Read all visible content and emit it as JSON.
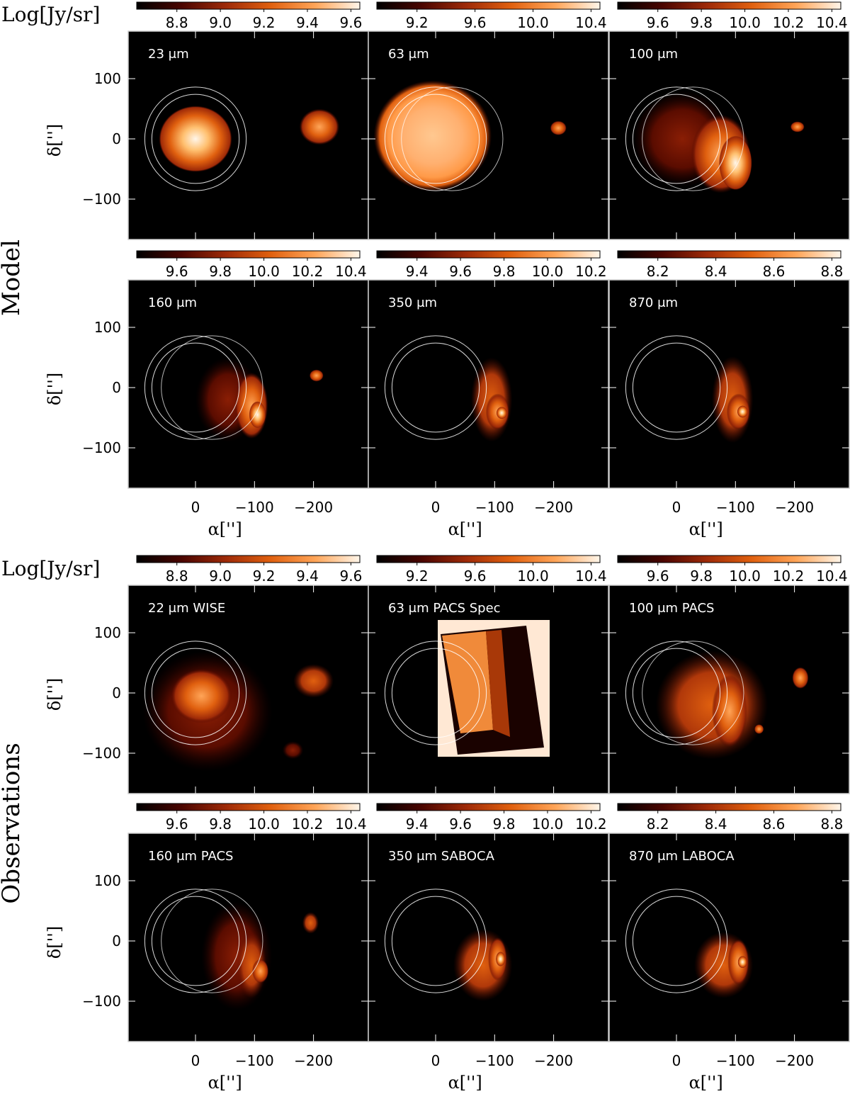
{
  "chart_data": {
    "type": "heatmap",
    "unit_label": "Log[Jy/sr]",
    "group_labels": [
      "Model",
      "Observations"
    ],
    "x_axis_label": "α['']",
    "y_axis_label": "δ['']",
    "x_ticks": [
      "0",
      "−100",
      "−200"
    ],
    "y_ticks": [
      "100",
      "0",
      "−100"
    ],
    "colormap": [
      "#000000",
      "#4a0500",
      "#9e2a08",
      "#e0600f",
      "#ffa558",
      "#fff6ea"
    ],
    "colorbar_ticks": [
      [
        "8.8",
        "9.0",
        "9.2",
        "9.4",
        "9.6"
      ],
      [
        "9.2",
        "9.6",
        "10.0",
        "10.4"
      ],
      [
        "9.6",
        "9.8",
        "10.0",
        "10.2",
        "10.4"
      ],
      [
        "9.6",
        "9.8",
        "10.0",
        "10.2",
        "10.4"
      ],
      [
        "9.4",
        "9.6",
        "9.8",
        "10.0",
        "10.2"
      ],
      [
        "8.2",
        "8.4",
        "8.6",
        "8.8"
      ],
      [
        "8.8",
        "9.0",
        "9.2",
        "9.4",
        "9.6"
      ],
      [
        "9.2",
        "9.6",
        "10.0",
        "10.4"
      ],
      [
        "9.6",
        "9.8",
        "10.0",
        "10.2",
        "10.4"
      ],
      [
        "9.6",
        "9.8",
        "10.0",
        "10.2",
        "10.4"
      ],
      [
        "9.4",
        "9.6",
        "9.8",
        "10.0",
        "10.2"
      ],
      [
        "8.2",
        "8.4",
        "8.6",
        "8.8"
      ]
    ],
    "panel_titles": [
      "23 μm",
      "63 μm",
      "100 μm",
      "160 μm",
      "350 μm",
      "870 μm",
      "22 μm WISE",
      "63 μm PACS Spec",
      "100 μm PACS",
      "160 μm PACS",
      "350 μm SABOCA",
      "870 μm LABOCA"
    ]
  }
}
